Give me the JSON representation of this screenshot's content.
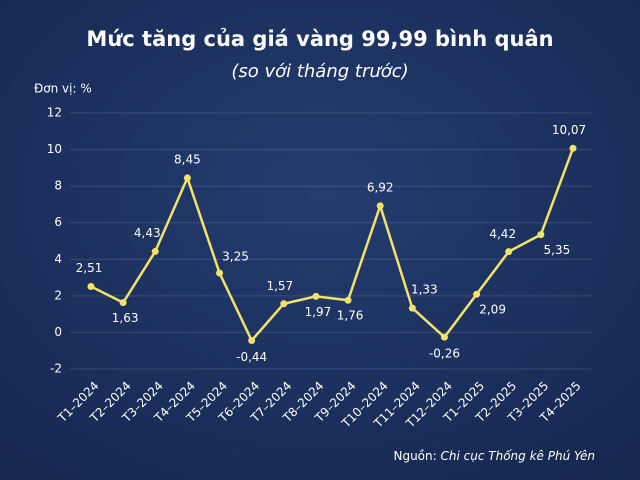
{
  "chart_data": {
    "type": "line",
    "title": "Mức tăng của giá vàng 99,99 bình quân",
    "subtitle": "(so với tháng trước)",
    "unit_label": "Đơn vị: %",
    "source_label": "Nguồn:",
    "source": "Chi cục Thống kê Phú Yên",
    "categories": [
      "T1–2024",
      "T2–2024",
      "T3–2024",
      "T4–2024",
      "T5–2024",
      "T6–2024",
      "T7–2024",
      "T8–2024",
      "T9–2024",
      "T10–2024",
      "T11–2024",
      "T12–2024",
      "T1–2025",
      "T2–2025",
      "T3–2025",
      "T4–2025"
    ],
    "values": [
      2.51,
      1.63,
      4.43,
      8.45,
      3.25,
      -0.44,
      1.57,
      1.97,
      1.76,
      6.92,
      1.33,
      -0.26,
      2.09,
      4.42,
      5.35,
      10.07
    ],
    "value_labels": [
      "2,51",
      "1,63",
      "4,43",
      "8,45",
      "3,25",
      "-0,44",
      "1,57",
      "1,97",
      "1,76",
      "6,92",
      "1,33",
      "-0,26",
      "2,09",
      "4,42",
      "5,35",
      "10,07"
    ],
    "color": "#f3e26a",
    "ylim": [
      -2,
      12
    ],
    "yticks": [
      -2,
      0,
      2,
      4,
      6,
      8,
      10,
      12
    ],
    "grid": true
  }
}
